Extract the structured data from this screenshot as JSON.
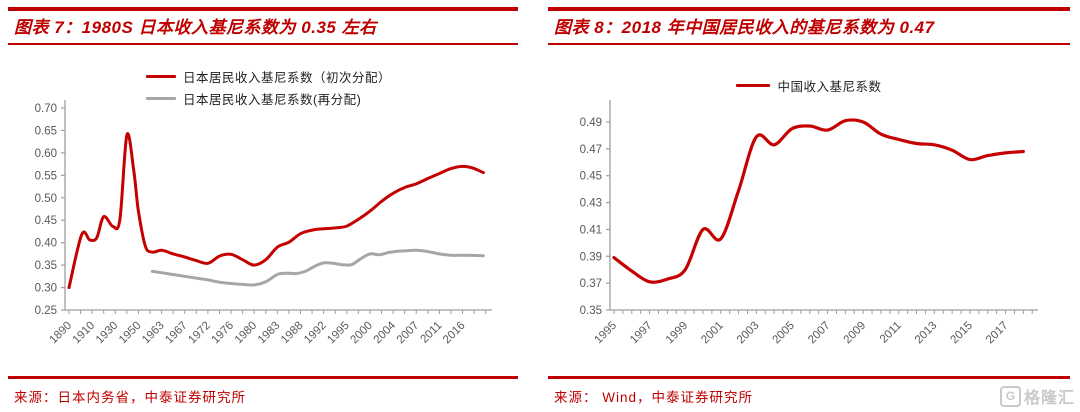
{
  "colors": {
    "accent": "#bf0000",
    "line_red": "#c40000",
    "line_gray": "#a6a6a6",
    "axis": "#9e9e9e",
    "tick_text": "#595959",
    "legend_text": "#1f1f1f",
    "logo_gray": "#c9c9c9"
  },
  "logo": {
    "icon": "gelonghui-logo",
    "initial": "G",
    "text": "格隆汇"
  },
  "chart_data": [
    {
      "type": "line",
      "title": "图表 7：1980S 日本收入基尼系数为 0.35 左右",
      "source": "来源：日本内务省，中泰证券研究所",
      "legend_position": "top",
      "grid": false,
      "ylim": [
        0.25,
        0.7
      ],
      "y_ticks": [
        0.7,
        0.65,
        0.6,
        0.55,
        0.5,
        0.45,
        0.4,
        0.35,
        0.3,
        0.25
      ],
      "x_tick_labels": [
        "1890",
        "1910",
        "1930",
        "1950",
        "1963",
        "1967",
        "1972",
        "1976",
        "1980",
        "1983",
        "1988",
        "1992",
        "1995",
        "2000",
        "2004",
        "2007",
        "2011",
        "2016"
      ],
      "x_axis_note": "category axis; series points use label-index units (0 = 1890 tick, 17 = 2016 tick); spike at ~1940 between 1930 and 1950",
      "series": [
        {
          "name": "日本居民收入基尼系数（初次分配）",
          "color": "#c40000",
          "points": [
            [
              0,
              0.3
            ],
            [
              0.55,
              0.418
            ],
            [
              0.9,
              0.406
            ],
            [
              1.2,
              0.411
            ],
            [
              1.5,
              0.458
            ],
            [
              1.9,
              0.436
            ],
            [
              2.2,
              0.452
            ],
            [
              2.5,
              0.64
            ],
            [
              2.8,
              0.56
            ],
            [
              3.0,
              0.47
            ],
            [
              3.3,
              0.392
            ],
            [
              3.6,
              0.379
            ],
            [
              4.0,
              0.383
            ],
            [
              4.5,
              0.375
            ],
            [
              5.0,
              0.368
            ],
            [
              5.5,
              0.36
            ],
            [
              6.0,
              0.354
            ],
            [
              6.5,
              0.37
            ],
            [
              7.0,
              0.374
            ],
            [
              7.5,
              0.362
            ],
            [
              8.0,
              0.35
            ],
            [
              8.5,
              0.362
            ],
            [
              9.0,
              0.39
            ],
            [
              9.5,
              0.401
            ],
            [
              10.0,
              0.42
            ],
            [
              10.5,
              0.428
            ],
            [
              11.0,
              0.431
            ],
            [
              11.5,
              0.433
            ],
            [
              12.0,
              0.437
            ],
            [
              12.5,
              0.452
            ],
            [
              13.0,
              0.47
            ],
            [
              13.5,
              0.492
            ],
            [
              14.0,
              0.51
            ],
            [
              14.5,
              0.523
            ],
            [
              15.0,
              0.531
            ],
            [
              15.5,
              0.543
            ],
            [
              16.0,
              0.554
            ],
            [
              16.5,
              0.565
            ],
            [
              17.0,
              0.57
            ],
            [
              17.4,
              0.567
            ],
            [
              17.9,
              0.556
            ]
          ]
        },
        {
          "name": "日本居民收入基尼系数(再分配)",
          "color": "#a6a6a6",
          "points": [
            [
              3.6,
              0.336
            ],
            [
              4.0,
              0.333
            ],
            [
              4.5,
              0.329
            ],
            [
              5.0,
              0.325
            ],
            [
              5.5,
              0.321
            ],
            [
              6.0,
              0.317
            ],
            [
              6.5,
              0.312
            ],
            [
              7.0,
              0.309
            ],
            [
              7.5,
              0.307
            ],
            [
              8.0,
              0.306
            ],
            [
              8.5,
              0.313
            ],
            [
              9.0,
              0.329
            ],
            [
              9.4,
              0.332
            ],
            [
              9.8,
              0.331
            ],
            [
              10.2,
              0.336
            ],
            [
              10.6,
              0.347
            ],
            [
              11.0,
              0.355
            ],
            [
              11.4,
              0.354
            ],
            [
              11.8,
              0.351
            ],
            [
              12.2,
              0.351
            ],
            [
              12.6,
              0.364
            ],
            [
              13.0,
              0.375
            ],
            [
              13.4,
              0.373
            ],
            [
              13.8,
              0.378
            ],
            [
              14.2,
              0.381
            ],
            [
              14.6,
              0.382
            ],
            [
              15.0,
              0.383
            ],
            [
              15.5,
              0.38
            ],
            [
              16.0,
              0.375
            ],
            [
              16.5,
              0.372
            ],
            [
              17.0,
              0.372
            ],
            [
              17.9,
              0.371
            ]
          ]
        }
      ]
    },
    {
      "type": "line",
      "title": "图表 8：2018 年中国居民收入的基尼系数为 0.47",
      "source": "来源： Wind，中泰证券研究所",
      "legend_position": "top-center",
      "grid": false,
      "ylim": [
        0.35,
        0.49
      ],
      "y_ticks": [
        0.49,
        0.47,
        0.45,
        0.43,
        0.41,
        0.39,
        0.37,
        0.35
      ],
      "x_tick_labels": [
        "1995",
        "1997",
        "1999",
        "2001",
        "2003",
        "2005",
        "2007",
        "2009",
        "2011",
        "2013",
        "2015",
        "2017"
      ],
      "series": [
        {
          "name": "中国收入基尼系数",
          "color": "#c40000",
          "x": [
            1995,
            1996,
            1997,
            1998,
            1999,
            2000,
            2001,
            2002,
            2003,
            2004,
            2005,
            2006,
            2007,
            2008,
            2009,
            2010,
            2011,
            2012,
            2013,
            2014,
            2015,
            2016,
            2017,
            2018
          ],
          "values": [
            0.389,
            0.379,
            0.371,
            0.373,
            0.38,
            0.41,
            0.403,
            0.439,
            0.479,
            0.473,
            0.485,
            0.487,
            0.484,
            0.491,
            0.49,
            0.481,
            0.477,
            0.474,
            0.473,
            0.469,
            0.462,
            0.465,
            0.467,
            0.468
          ]
        }
      ]
    }
  ]
}
